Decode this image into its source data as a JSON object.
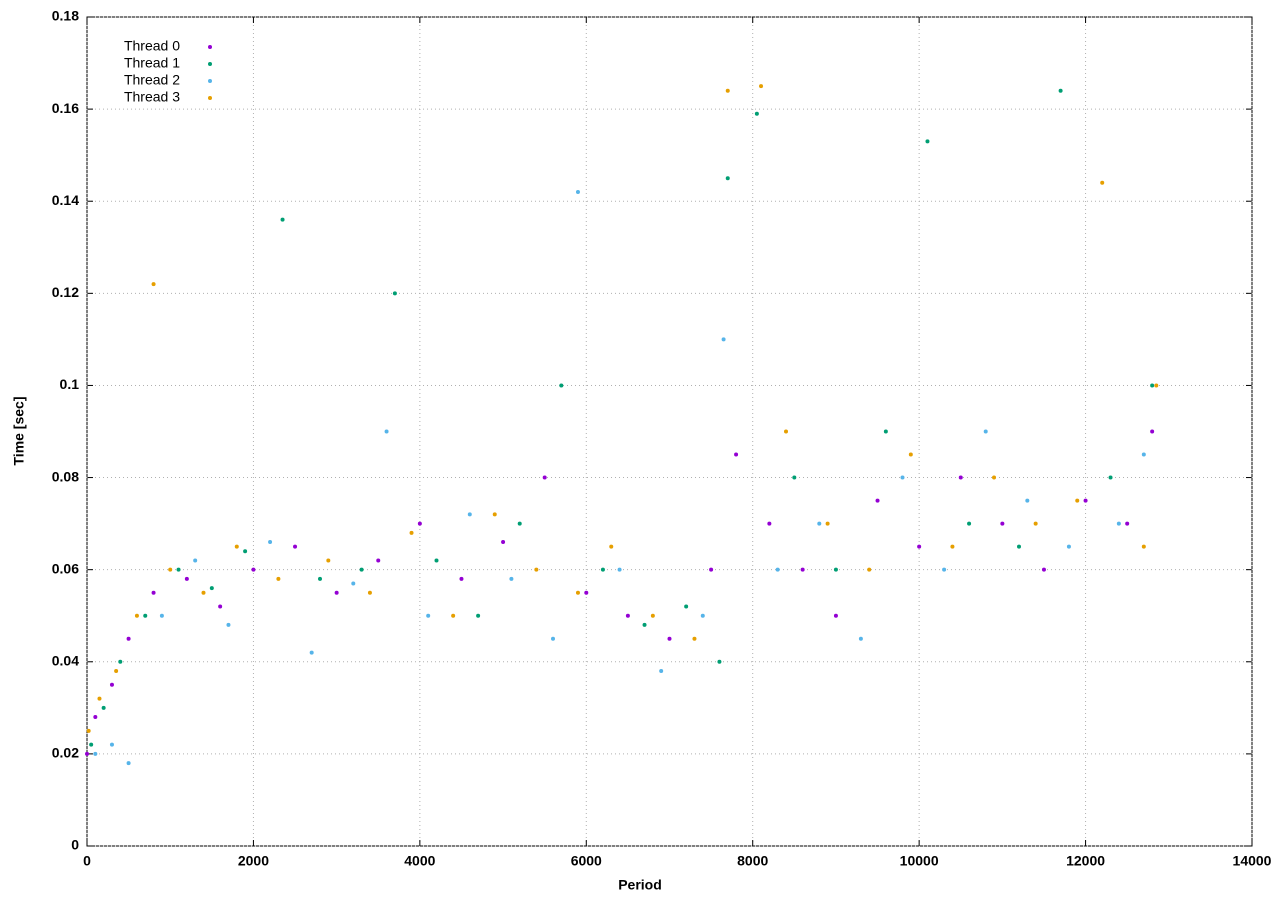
{
  "chart_data": {
    "type": "scatter",
    "x_label": "Period",
    "y_label": "Time [sec]",
    "xlim": [
      0,
      14000
    ],
    "xticks": [
      0,
      2000,
      4000,
      6000,
      8000,
      10000,
      12000,
      14000
    ],
    "ylim": [
      0,
      0.18
    ],
    "yticks": [
      0,
      0.02,
      0.04,
      0.06,
      0.08,
      0.1,
      0.12,
      0.14,
      0.16,
      0.18
    ],
    "grid": true,
    "legend": "top-left",
    "series": [
      {
        "name": "Thread 0",
        "color": "#9400d3",
        "x": [
          0,
          100,
          300,
          500,
          800,
          1200,
          1600,
          2000,
          2500,
          3000,
          3500,
          4000,
          4500,
          5000,
          5500,
          6000,
          6500,
          7000,
          7500,
          7800,
          8200,
          8600,
          9000,
          9500,
          10000,
          10500,
          11000,
          11500,
          12000,
          12500,
          12800
        ],
        "values": [
          0.02,
          0.028,
          0.035,
          0.045,
          0.055,
          0.058,
          0.052,
          0.06,
          0.065,
          0.055,
          0.062,
          0.07,
          0.058,
          0.066,
          0.08,
          0.055,
          0.05,
          0.045,
          0.06,
          0.085,
          0.07,
          0.06,
          0.05,
          0.075,
          0.065,
          0.08,
          0.07,
          0.06,
          0.075,
          0.07,
          0.09
        ]
      },
      {
        "name": "Thread 1",
        "color": "#009e73",
        "x": [
          50,
          200,
          400,
          700,
          1100,
          1500,
          1900,
          2350,
          2800,
          3300,
          3700,
          4200,
          4700,
          5200,
          5700,
          6200,
          6700,
          7200,
          7600,
          7700,
          8050,
          8500,
          9000,
          9600,
          10100,
          10600,
          11200,
          11700,
          12300,
          12800
        ],
        "values": [
          0.022,
          0.03,
          0.04,
          0.05,
          0.06,
          0.056,
          0.064,
          0.136,
          0.058,
          0.06,
          0.12,
          0.062,
          0.05,
          0.07,
          0.1,
          0.06,
          0.048,
          0.052,
          0.04,
          0.145,
          0.159,
          0.08,
          0.06,
          0.09,
          0.153,
          0.07,
          0.065,
          0.164,
          0.08,
          0.1
        ]
      },
      {
        "name": "Thread 2",
        "color": "#56b4e9",
        "x": [
          100,
          300,
          500,
          900,
          1300,
          1700,
          2200,
          2700,
          3200,
          3600,
          4100,
          4600,
          5100,
          5600,
          5900,
          6400,
          6900,
          7400,
          7650,
          8300,
          8800,
          9300,
          9800,
          10300,
          10800,
          11300,
          11800,
          12400,
          12700
        ],
        "values": [
          0.02,
          0.022,
          0.018,
          0.05,
          0.062,
          0.048,
          0.066,
          0.042,
          0.057,
          0.09,
          0.05,
          0.072,
          0.058,
          0.045,
          0.142,
          0.06,
          0.038,
          0.05,
          0.11,
          0.06,
          0.07,
          0.045,
          0.08,
          0.06,
          0.09,
          0.075,
          0.065,
          0.07,
          0.085
        ]
      },
      {
        "name": "Thread 3",
        "color": "#e69f00",
        "x": [
          20,
          150,
          350,
          600,
          800,
          1000,
          1400,
          1800,
          2300,
          2900,
          3400,
          3900,
          4400,
          4900,
          5400,
          5900,
          6300,
          6800,
          7300,
          7700,
          8100,
          8400,
          8900,
          9400,
          9900,
          10400,
          10900,
          11400,
          11900,
          12200,
          12700,
          12850
        ],
        "values": [
          0.025,
          0.032,
          0.038,
          0.05,
          0.122,
          0.06,
          0.055,
          0.065,
          0.058,
          0.062,
          0.055,
          0.068,
          0.05,
          0.072,
          0.06,
          0.055,
          0.065,
          0.05,
          0.045,
          0.164,
          0.165,
          0.09,
          0.07,
          0.06,
          0.085,
          0.065,
          0.08,
          0.07,
          0.075,
          0.144,
          0.065,
          0.1
        ]
      }
    ]
  }
}
